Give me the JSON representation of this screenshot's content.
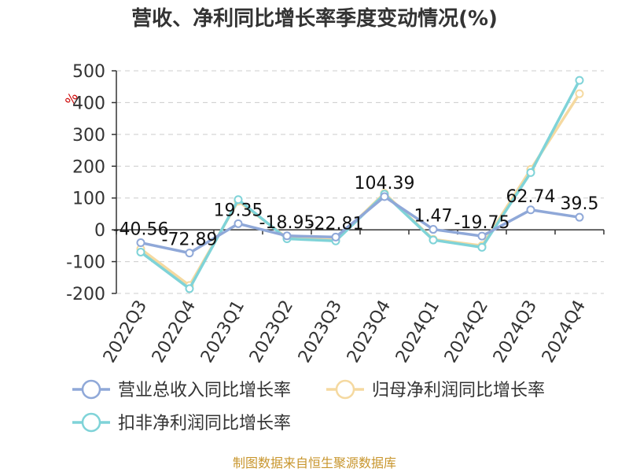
{
  "title": "营收、净利同比增长率季度变动情况(%)",
  "source": "制图数据来自恒生聚源数据库",
  "chart_data": {
    "type": "line",
    "title": "营收、净利同比增长率季度变动情况(%)",
    "ylabel": "%",
    "ylim": [
      -200,
      500
    ],
    "yticks": [
      -200,
      -100,
      0,
      100,
      200,
      300,
      400,
      500
    ],
    "grid": true,
    "legend_position": "bottom",
    "categories": [
      "2022Q3",
      "2022Q4",
      "2023Q1",
      "2023Q2",
      "2023Q3",
      "2023Q4",
      "2024Q1",
      "2024Q2",
      "2024Q3",
      "2024Q4"
    ],
    "series": [
      {
        "name": "营业总收入同比增长率",
        "color": "#8fa8d8",
        "values": [
          -40.56,
          -72.89,
          19.35,
          -18.95,
          -22.81,
          104.39,
          1.47,
          -19.75,
          62.74,
          39.5
        ],
        "labels": [
          "-40.56",
          "-72.89",
          "19.35",
          "-18.95",
          "-22.81",
          "104.39",
          "1.47",
          "-19.75",
          "62.74",
          "39.5"
        ]
      },
      {
        "name": "归母净利润同比增长率",
        "color": "#f5d9a0",
        "values": [
          -60,
          -175,
          90,
          -25,
          -32,
          115,
          -30,
          -50,
          190,
          428
        ]
      },
      {
        "name": "扣非净利润同比增长率",
        "color": "#7fd3d8",
        "values": [
          -70,
          -185,
          95,
          -28,
          -35,
          112,
          -32,
          -55,
          180,
          470
        ]
      }
    ]
  }
}
